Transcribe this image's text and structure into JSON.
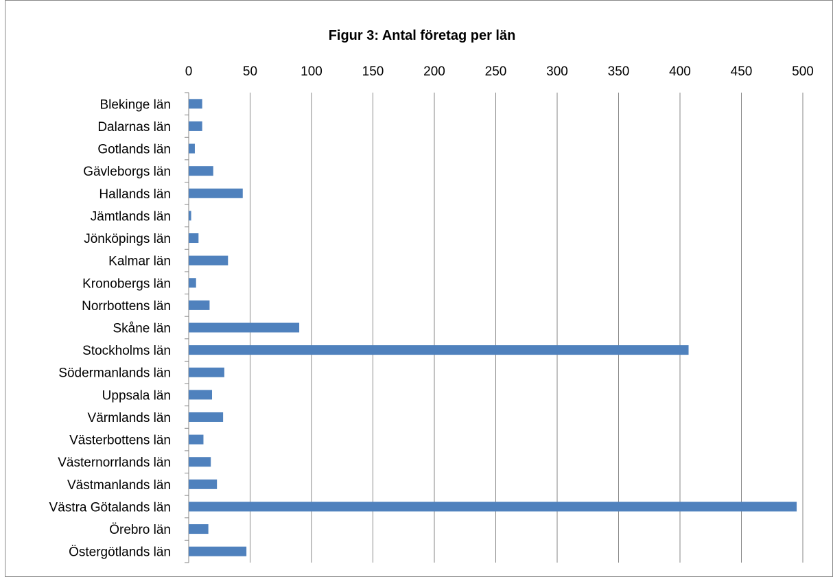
{
  "chart_data": {
    "type": "bar",
    "orientation": "horizontal",
    "title": "Figur 3: Antal företag per län",
    "xlabel": "",
    "ylabel": "",
    "xlim": [
      0,
      500
    ],
    "x_ticks": [
      "0",
      "50",
      "100",
      "150",
      "200",
      "250",
      "300",
      "350",
      "400",
      "450",
      "500"
    ],
    "x_axis_position": "top",
    "grid": true,
    "legend": false,
    "bar_color": "#4F81BD",
    "categories": [
      "Blekinge län",
      "Dalarnas län",
      "Gotlands län",
      "Gävleborgs län",
      "Hallands län",
      "Jämtlands län",
      "Jönköpings län",
      "Kalmar län",
      "Kronobergs län",
      "Norrbottens län",
      "Skåne län",
      "Stockholms län",
      "Södermanlands län",
      "Uppsala län",
      "Värmlands län",
      "Västerbottens län",
      "Västernorrlands län",
      "Västmanlands län",
      "Västra Götalands län",
      "Örebro län",
      "Östergötlands län"
    ],
    "values": [
      11,
      11,
      5,
      20,
      44,
      2,
      8,
      32,
      6,
      17,
      90,
      407,
      29,
      19,
      28,
      12,
      18,
      23,
      495,
      16,
      47
    ]
  }
}
